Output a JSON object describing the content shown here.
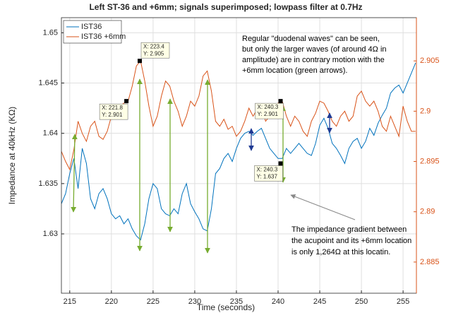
{
  "chart_data": {
    "type": "line",
    "title": "Left ST-36 and +6mm; signals superimposed; lowpass filter at 0.7Hz",
    "xlabel": "Time (seconds)",
    "ylabel": "Impedance at 40kHz (KΩ)",
    "x": [
      214,
      214.5,
      215,
      215.5,
      216,
      216.5,
      217,
      217.5,
      218,
      218.5,
      219,
      219.5,
      220,
      220.5,
      221,
      221.5,
      222,
      222.5,
      223,
      223.5,
      224,
      224.5,
      225,
      225.5,
      226,
      226.5,
      227,
      227.5,
      228,
      228.5,
      229,
      229.5,
      230,
      230.5,
      231,
      231.5,
      232,
      232.5,
      233,
      233.5,
      234,
      234.5,
      235,
      235.5,
      236,
      236.5,
      237,
      237.5,
      238,
      238.5,
      239,
      239.5,
      240,
      240.5,
      241,
      241.5,
      242,
      242.5,
      243,
      243.5,
      244,
      244.5,
      245,
      245.5,
      246,
      246.5,
      247,
      247.5,
      248,
      248.5,
      249,
      249.5,
      250,
      250.5,
      251,
      251.5,
      252,
      252.5,
      253,
      253.5,
      254,
      254.5,
      255,
      255.5,
      256,
      256.5
    ],
    "series": [
      {
        "name": "IST36",
        "color": "#0072BD",
        "axis": "y",
        "values": [
          1.633,
          1.634,
          1.636,
          1.6375,
          1.6345,
          1.6385,
          1.637,
          1.6335,
          1.6325,
          1.634,
          1.6345,
          1.6335,
          1.632,
          1.6315,
          1.6318,
          1.631,
          1.6315,
          1.6305,
          1.6298,
          1.6294,
          1.631,
          1.6335,
          1.635,
          1.6345,
          1.6325,
          1.632,
          1.6318,
          1.6325,
          1.632,
          1.634,
          1.635,
          1.633,
          1.6322,
          1.6315,
          1.6305,
          1.6303,
          1.6325,
          1.636,
          1.6365,
          1.6375,
          1.638,
          1.6372,
          1.6385,
          1.6395,
          1.64,
          1.6402,
          1.6398,
          1.6402,
          1.6405,
          1.6395,
          1.6385,
          1.638,
          1.6375,
          1.6375,
          1.6385,
          1.638,
          1.6385,
          1.639,
          1.6385,
          1.638,
          1.6378,
          1.639,
          1.6408,
          1.6415,
          1.6405,
          1.639,
          1.6385,
          1.6378,
          1.637,
          1.6385,
          1.6392,
          1.6395,
          1.6385,
          1.6392,
          1.6405,
          1.6398,
          1.641,
          1.6418,
          1.6425,
          1.644,
          1.6445,
          1.6448,
          1.644,
          1.645,
          1.646,
          1.647
        ]
      },
      {
        "name": "IST36 +6mm",
        "color": "#D95319",
        "axis": "y2",
        "values": [
          2.896,
          2.895,
          2.8942,
          2.8962,
          2.899,
          2.8978,
          2.897,
          2.8985,
          2.899,
          2.8975,
          2.8972,
          2.898,
          2.8995,
          2.9002,
          2.9005,
          2.9008,
          2.901,
          2.9025,
          2.9045,
          2.905,
          2.903,
          2.9005,
          2.8985,
          2.8995,
          2.9015,
          2.903,
          2.9025,
          2.901,
          2.9,
          2.8985,
          2.8995,
          2.901,
          2.9005,
          2.9015,
          2.9035,
          2.904,
          2.902,
          2.899,
          2.8985,
          2.8992,
          2.8982,
          2.8985,
          2.8975,
          2.898,
          2.899,
          2.9003,
          2.8995,
          2.9002,
          2.9005,
          2.899,
          2.8995,
          2.9005,
          2.9008,
          2.901,
          2.8995,
          2.8985,
          2.8995,
          2.899,
          2.898,
          2.8975,
          2.899,
          2.8998,
          2.901,
          2.9008,
          2.9,
          2.899,
          2.8985,
          2.8995,
          2.9,
          2.899,
          2.8995,
          2.9015,
          2.902,
          2.901,
          2.9005,
          2.901,
          2.9,
          2.8985,
          2.898,
          2.8995,
          2.8985,
          2.8975,
          2.9005,
          2.899,
          2.898,
          2.898
        ]
      }
    ],
    "xlim": [
      214,
      256.6
    ],
    "xticks": [
      215,
      220,
      225,
      230,
      235,
      240,
      245,
      250,
      255
    ],
    "ylim": [
      1.6241,
      1.6515
    ],
    "yticks": [
      1.63,
      1.635,
      1.64,
      1.645,
      1.65
    ],
    "y2lim": [
      2.8819,
      2.9093
    ],
    "y2ticks": [
      2.885,
      2.89,
      2.895,
      2.9,
      2.905
    ],
    "grid": true,
    "legend": "upper left",
    "datatips": [
      {
        "x": 221.8,
        "y": 2.901,
        "axis": "y2",
        "lines": [
          "X: 221.8",
          "Y: 2.901"
        ]
      },
      {
        "x": 223.4,
        "y": 2.905,
        "axis": "y2",
        "lines": [
          "X: 223.4",
          "Y: 2.905"
        ]
      },
      {
        "x": 240.3,
        "y": 2.901,
        "axis": "y2",
        "lines": [
          "X: 240.3",
          "Y: 2.901"
        ]
      },
      {
        "x": 240.3,
        "y": 1.637,
        "axis": "y",
        "lines": [
          "X: 240.3",
          "Y: 1.637"
        ]
      }
    ],
    "annotations": [
      [
        "Regular \"duodenal waves\" can be seen,",
        "but only the larger waves (of around 4Ω in",
        "amplitude) are in contrary motion with the",
        "+6mm location (green arrows)."
      ],
      [
        "The impedance gradient between",
        "the acupoint and its +6mm location",
        "is only 1,264Ω at this locatin."
      ]
    ]
  }
}
